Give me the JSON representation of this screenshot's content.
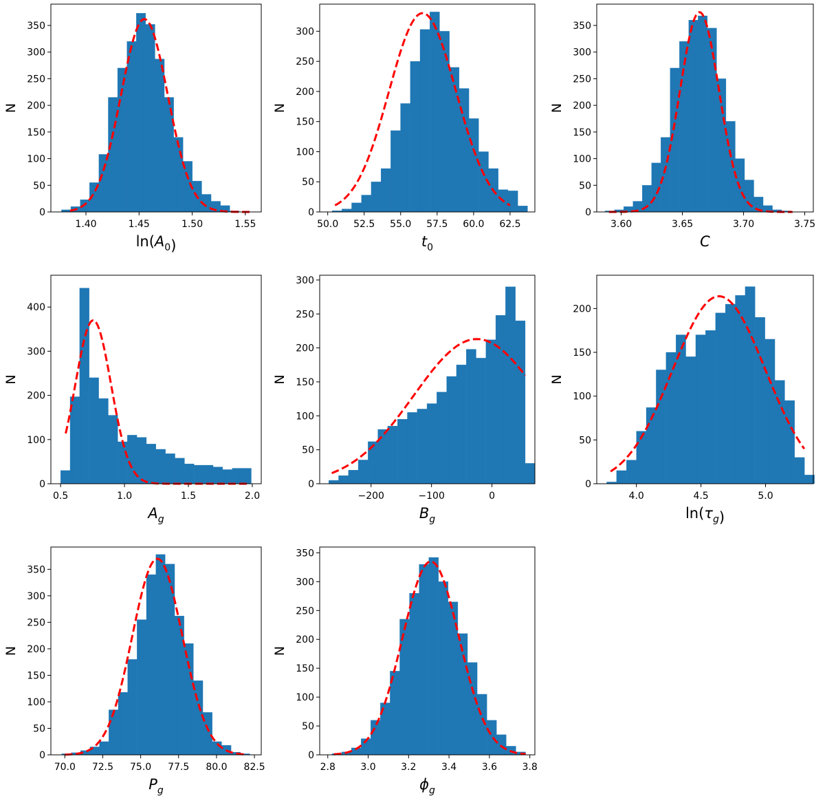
{
  "colors": {
    "bar": "#1f77b4",
    "fit": "#ff0000",
    "axis": "#000000"
  },
  "chart_data": [
    {
      "type": "bar",
      "title": "",
      "ylabel": "N",
      "xlabel": "ln(A0)",
      "xlabel_parts": [
        {
          "t": "ln("
        },
        {
          "t": "A",
          "i": true
        },
        {
          "t": "0",
          "sub": true
        },
        {
          "t": ")"
        }
      ],
      "xlim": [
        1.367,
        1.565
      ],
      "ylim": [
        0,
        390
      ],
      "xticks": [
        1.4,
        1.45,
        1.5,
        1.55
      ],
      "xtick_labels": [
        "1.40",
        "1.45",
        "1.50",
        "1.55"
      ],
      "yticks": [
        0,
        50,
        100,
        150,
        200,
        250,
        300,
        350
      ],
      "ytick_labels": [
        "0",
        "50",
        "100",
        "150",
        "200",
        "250",
        "300",
        "350"
      ],
      "bin_start": 1.377,
      "bin_width": 0.0088,
      "values": [
        4,
        10,
        23,
        55,
        108,
        215,
        270,
        320,
        373,
        352,
        287,
        215,
        140,
        95,
        58,
        33,
        20,
        12,
        2
      ],
      "fit": {
        "kind": "gaussian",
        "amp": 362,
        "mu": 1.455,
        "sigma": 0.022,
        "x": [
          1.385,
          1.555
        ]
      }
    },
    {
      "type": "bar",
      "title": "",
      "ylabel": "N",
      "xlabel": "t0",
      "xlabel_parts": [
        {
          "t": "t",
          "i": true
        },
        {
          "t": "0",
          "sub": true
        }
      ],
      "xlim": [
        49.45,
        64.2
      ],
      "ylim": [
        0,
        345
      ],
      "xticks": [
        50.0,
        52.5,
        55.0,
        57.5,
        60.0,
        62.5
      ],
      "xtick_labels": [
        "50.0",
        "52.5",
        "55.0",
        "57.5",
        "60.0",
        "62.5"
      ],
      "yticks": [
        0,
        50,
        100,
        150,
        200,
        250,
        300
      ],
      "ytick_labels": [
        "0",
        "50",
        "100",
        "150",
        "200",
        "250",
        "300"
      ],
      "bin_start": 50.3,
      "bin_width": 0.67,
      "values": [
        2,
        5,
        15,
        28,
        50,
        72,
        135,
        180,
        250,
        303,
        332,
        300,
        240,
        205,
        155,
        100,
        72,
        37,
        35,
        10
      ],
      "fit": {
        "kind": "gaussian",
        "amp": 330,
        "mu": 56.5,
        "sigma": 2.3,
        "x": [
          50.5,
          62.5
        ]
      }
    },
    {
      "type": "bar",
      "title": "",
      "ylabel": "N",
      "xlabel": "C",
      "xlabel_parts": [
        {
          "t": "C",
          "i": true
        }
      ],
      "xlim": [
        3.58,
        3.757
      ],
      "ylim": [
        0,
        390
      ],
      "xticks": [
        3.6,
        3.65,
        3.7,
        3.75
      ],
      "xtick_labels": [
        "3.60",
        "3.65",
        "3.70",
        "3.75"
      ],
      "yticks": [
        0,
        50,
        100,
        150,
        200,
        250,
        300,
        350
      ],
      "ytick_labels": [
        "0",
        "50",
        "100",
        "150",
        "200",
        "250",
        "300",
        "350"
      ],
      "bin_start": 3.5868,
      "bin_width": 0.0076,
      "values": [
        2,
        4,
        10,
        20,
        50,
        92,
        140,
        270,
        320,
        360,
        368,
        345,
        250,
        170,
        100,
        60,
        28,
        12,
        4,
        2
      ],
      "fit": {
        "kind": "gaussian",
        "amp": 375,
        "mu": 3.664,
        "sigma": 0.016,
        "x": [
          3.59,
          3.74
        ]
      }
    },
    {
      "type": "bar",
      "title": "",
      "ylabel": "N",
      "xlabel": "Ag",
      "xlabel_parts": [
        {
          "t": "A",
          "i": true
        },
        {
          "t": "g",
          "sub": true,
          "i": true
        }
      ],
      "xlim": [
        0.424,
        2.07
      ],
      "ylim": [
        0,
        472
      ],
      "xticks": [
        0.5,
        1.0,
        1.5,
        2.0
      ],
      "xtick_labels": [
        "0.5",
        "1.0",
        "1.5",
        "2.0"
      ],
      "yticks": [
        0,
        100,
        200,
        300,
        400
      ],
      "ytick_labels": [
        "0",
        "100",
        "200",
        "300",
        "400"
      ],
      "bin_start": 0.5,
      "bin_width": 0.0746,
      "values": [
        30,
        197,
        443,
        240,
        193,
        155,
        95,
        110,
        105,
        90,
        78,
        68,
        58,
        45,
        42,
        42,
        38,
        32,
        35,
        35
      ],
      "fit": {
        "kind": "gaussian",
        "amp": 370,
        "mu": 0.755,
        "sigma": 0.14,
        "x": [
          0.54,
          1.97
        ]
      }
    },
    {
      "type": "bar",
      "title": "",
      "ylabel": "N",
      "xlabel": "Bg",
      "xlabel_parts": [
        {
          "t": "B",
          "i": true
        },
        {
          "t": "g",
          "sub": true,
          "i": true
        }
      ],
      "xlim": [
        -285,
        71
      ],
      "ylim": [
        0,
        307
      ],
      "xticks": [
        -200,
        -100,
        0
      ],
      "xtick_labels": [
        "−200",
        "−100",
        "0"
      ],
      "yticks": [
        0,
        50,
        100,
        150,
        200,
        250,
        300
      ],
      "ytick_labels": [
        "0",
        "50",
        "100",
        "150",
        "200",
        "250",
        "300"
      ],
      "bin_start": -270,
      "bin_width": 16.25,
      "values": [
        5,
        12,
        20,
        35,
        62,
        80,
        85,
        95,
        105,
        110,
        118,
        135,
        158,
        175,
        198,
        185,
        212,
        248,
        290,
        240,
        30
      ],
      "fit": {
        "kind": "gaussian",
        "amp": 213,
        "mu": -25,
        "sigma": 105,
        "x": [
          -265,
          55
        ]
      }
    },
    {
      "type": "bar",
      "title": "",
      "ylabel": "N",
      "xlabel": "ln(τg)",
      "xlabel_parts": [
        {
          "t": "ln("
        },
        {
          "t": "τ",
          "i": true
        },
        {
          "t": "g",
          "sub": true,
          "i": true
        },
        {
          "t": ")"
        }
      ],
      "xlim": [
        3.693,
        5.37
      ],
      "ylim": [
        0,
        238
      ],
      "xticks": [
        4.0,
        4.5,
        5.0
      ],
      "xtick_labels": [
        "4.0",
        "4.5",
        "5.0"
      ],
      "yticks": [
        0,
        50,
        100,
        150,
        200
      ],
      "ytick_labels": [
        "0",
        "50",
        "100",
        "150",
        "200"
      ],
      "bin_start": 3.77,
      "bin_width": 0.0766,
      "values": [
        2,
        15,
        27,
        60,
        87,
        130,
        150,
        170,
        145,
        170,
        175,
        195,
        205,
        215,
        225,
        190,
        165,
        118,
        95,
        30,
        10
      ],
      "fit": {
        "kind": "gaussian",
        "amp": 214,
        "mu": 4.64,
        "sigma": 0.36,
        "x": [
          3.8,
          5.3
        ]
      }
    },
    {
      "type": "bar",
      "title": "",
      "ylabel": "N",
      "xlabel": "Pg",
      "xlabel_parts": [
        {
          "t": "P",
          "i": true
        },
        {
          "t": "g",
          "sub": true,
          "i": true
        }
      ],
      "xlim": [
        69.08,
        82.95
      ],
      "ylim": [
        0,
        392
      ],
      "xticks": [
        70.0,
        72.5,
        75.0,
        77.5,
        80.0,
        82.5
      ],
      "xtick_labels": [
        "70.0",
        "72.5",
        "75.0",
        "77.5",
        "80.0",
        "82.5"
      ],
      "yticks": [
        0,
        50,
        100,
        150,
        200,
        250,
        300,
        350
      ],
      "ytick_labels": [
        "0",
        "50",
        "100",
        "150",
        "200",
        "250",
        "300",
        "350"
      ],
      "bin_start": 69.8,
      "bin_width": 0.62,
      "values": [
        2,
        4,
        8,
        15,
        25,
        85,
        118,
        180,
        255,
        340,
        378,
        360,
        262,
        210,
        140,
        80,
        25,
        18,
        5,
        2
      ],
      "fit": {
        "kind": "gaussian",
        "amp": 370,
        "mu": 76.1,
        "sigma": 1.65,
        "x": [
          70.0,
          82.0
        ]
      }
    },
    {
      "type": "bar",
      "title": "",
      "ylabel": "N",
      "xlabel": "φg",
      "xlabel_parts": [
        {
          "t": "ϕ",
          "i": true
        },
        {
          "t": "g",
          "sub": true,
          "i": true
        }
      ],
      "xlim": [
        2.76,
        3.825
      ],
      "ylim": [
        0,
        360
      ],
      "xticks": [
        2.8,
        3.0,
        3.2,
        3.4,
        3.6,
        3.8
      ],
      "xtick_labels": [
        "2.8",
        "3.0",
        "3.2",
        "3.4",
        "3.6",
        "3.8"
      ],
      "yticks": [
        0,
        50,
        100,
        150,
        200,
        250,
        300,
        350
      ],
      "ytick_labels": [
        "0",
        "50",
        "100",
        "150",
        "200",
        "250",
        "300",
        "350"
      ],
      "bin_start": 2.821,
      "bin_width": 0.0479,
      "values": [
        2,
        5,
        12,
        28,
        60,
        90,
        145,
        235,
        280,
        330,
        342,
        300,
        265,
        210,
        160,
        105,
        60,
        35,
        15,
        5
      ],
      "fit": {
        "kind": "gaussian",
        "amp": 335,
        "mu": 3.31,
        "sigma": 0.14,
        "x": [
          2.83,
          3.78
        ]
      }
    }
  ]
}
